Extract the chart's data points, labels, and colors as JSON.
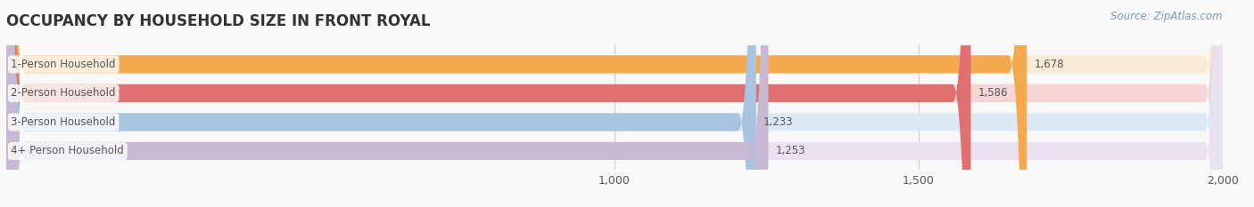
{
  "title": "OCCUPANCY BY HOUSEHOLD SIZE IN FRONT ROYAL",
  "source": "Source: ZipAtlas.com",
  "categories": [
    "1-Person Household",
    "2-Person Household",
    "3-Person Household",
    "4+ Person Household"
  ],
  "values": [
    1678,
    1586,
    1233,
    1253
  ],
  "bar_colors": [
    "#f5a94e",
    "#e07070",
    "#a8c4e0",
    "#c8b8d4"
  ],
  "bar_bg_colors": [
    "#faebd7",
    "#f5d5d5",
    "#dce8f4",
    "#ebe0ef"
  ],
  "xlim": [
    0,
    2000
  ],
  "xticks": [
    1000,
    1500,
    2000
  ],
  "xlabel_fontsize": 9,
  "title_fontsize": 12,
  "label_fontsize": 8.5,
  "value_fontsize": 8.5,
  "source_fontsize": 8.5,
  "bar_height": 0.62,
  "background_color": "#f8f8f8",
  "text_color": "#555555",
  "title_color": "#333333",
  "source_color": "#7a9ab5",
  "grid_color": "#cccccc"
}
